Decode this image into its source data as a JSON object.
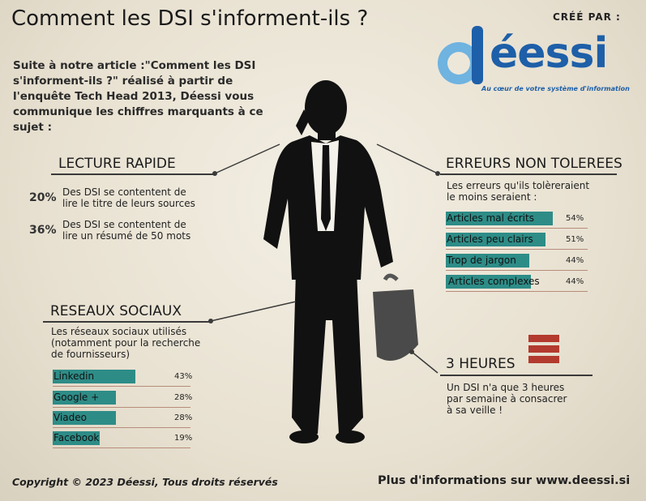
{
  "header": {
    "title": "Comment les DSI s'informent-ils ?",
    "created_by": "CRÉÉ PAR :"
  },
  "logo": {
    "word": "déessi",
    "tagline": "Au cœur de votre système d'information"
  },
  "intro": "Suite à notre article :\"Comment les DSI s'informent-ils ?\" réalisé à partir de l'enquête Tech Head 2013, Déessi vous communique les chiffres marquants à ce sujet :",
  "lecture": {
    "title": "LECTURE RAPIDE",
    "stats": [
      {
        "pct": "20%",
        "text": "Des DSI se contentent de lire le titre de leurs sources"
      },
      {
        "pct": "36%",
        "text": "Des DSI se contentent de lire un résumé de 50 mots"
      }
    ]
  },
  "erreurs": {
    "title": "ERREURS NON TOLEREES",
    "subtitle": "Les erreurs qu'ils tolèreraient le moins seraient :",
    "items": [
      {
        "label": "Articles mal écrits",
        "value": 54,
        "pct": "54%"
      },
      {
        "label": "Articles peu clairs",
        "value": 51,
        "pct": "51%"
      },
      {
        "label": "Trop de jargon",
        "value": 44,
        "pct": "44%"
      },
      {
        "label": "Articles complexes",
        "value": 44,
        "pct": "44%"
      }
    ]
  },
  "reseaux": {
    "title": "RESEAUX SOCIAUX",
    "subtitle": "Les réseaux sociaux utilisés (notamment pour la recherche de fournisseurs)",
    "items": [
      {
        "label": "Linkedin",
        "value": 43,
        "pct": "43%"
      },
      {
        "label": "Google +",
        "value": 28,
        "pct": "28%"
      },
      {
        "label": "Viadeo",
        "value": 28,
        "pct": "28%"
      },
      {
        "label": "Facebook",
        "value": 19,
        "pct": "19%"
      }
    ]
  },
  "heures": {
    "title": "3 HEURES",
    "text": "Un DSI n'a que 3 heures par semaine à consacrer à sa veille !"
  },
  "footer": {
    "copyright": "Copyright © 2023 Déessi, Tous droits réservés",
    "more": "Plus d'informations sur www.deessi.si"
  },
  "colors": {
    "bar": "#2e8c87",
    "brand": "#1d5fa8",
    "accent": "#b33a2e"
  }
}
